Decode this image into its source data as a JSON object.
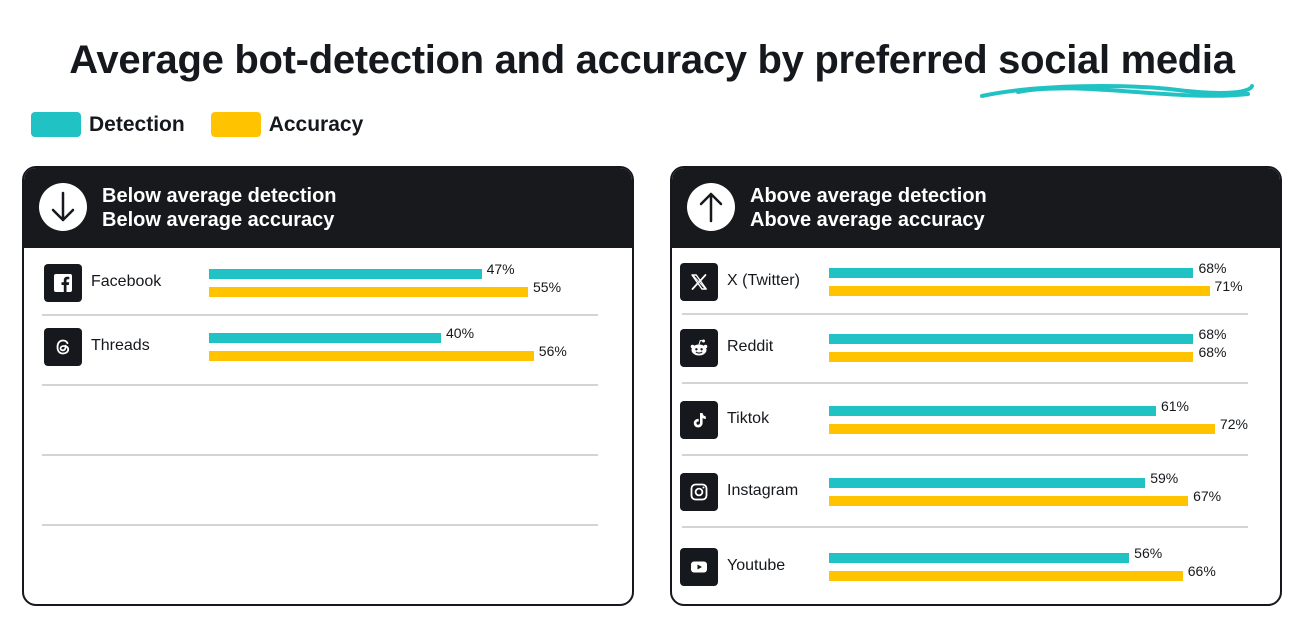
{
  "title": {
    "main": "Average bot-detection and accuracy by preferred ",
    "highlight": "social media"
  },
  "legend": [
    {
      "label": "Detection",
      "color": "#21c2c3"
    },
    {
      "label": "Accuracy",
      "color": "#ffc300"
    }
  ],
  "colors": {
    "detection": "#21c2c3",
    "accuracy": "#ffc300",
    "dark": "#17191c"
  },
  "chart_data": [
    {
      "type": "bar",
      "title": "Below average detection / Below average accuracy",
      "header_icon": "arrow-down-icon",
      "header_line1": "Below average detection",
      "header_line2": "Below average accuracy",
      "categories": [
        "Facebook",
        "Threads"
      ],
      "icons": [
        "facebook-icon",
        "threads-icon"
      ],
      "series": [
        {
          "name": "Detection",
          "values": [
            47,
            40
          ]
        },
        {
          "name": "Accuracy",
          "values": [
            55,
            56
          ]
        }
      ],
      "labels": {
        "Detection": [
          "47%",
          "40%"
        ],
        "Accuracy": [
          "55%",
          "56%"
        ]
      }
    },
    {
      "type": "bar",
      "title": "Above average detection / Above average accuracy",
      "header_icon": "arrow-up-icon",
      "header_line1": "Above average detection",
      "header_line2": "Above average accuracy",
      "categories": [
        "X (Twitter)",
        "Reddit",
        "Tiktok",
        "Instagram",
        "Youtube"
      ],
      "icons": [
        "x-twitter-icon",
        "reddit-icon",
        "tiktok-icon",
        "instagram-icon",
        "youtube-icon"
      ],
      "series": [
        {
          "name": "Detection",
          "values": [
            68,
            68,
            61,
            59,
            56
          ]
        },
        {
          "name": "Accuracy",
          "values": [
            71,
            68,
            72,
            67,
            66
          ]
        }
      ],
      "labels": {
        "Detection": [
          "68%",
          "68%",
          "61%",
          "59%",
          "56%"
        ],
        "Accuracy": [
          "71%",
          "68%",
          "72%",
          "67%",
          "66%"
        ]
      }
    }
  ]
}
